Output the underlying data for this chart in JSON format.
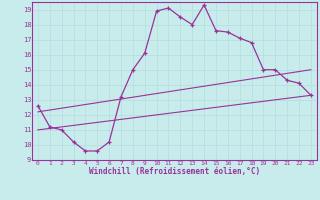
{
  "xlabel": "Windchill (Refroidissement éolien,°C)",
  "ylabel": "",
  "xlim": [
    -0.5,
    23.5
  ],
  "ylim": [
    9,
    19.5
  ],
  "xticks": [
    0,
    1,
    2,
    3,
    4,
    5,
    6,
    7,
    8,
    9,
    10,
    11,
    12,
    13,
    14,
    15,
    16,
    17,
    18,
    19,
    20,
    21,
    22,
    23
  ],
  "yticks": [
    9,
    10,
    11,
    12,
    13,
    14,
    15,
    16,
    17,
    18,
    19
  ],
  "bg_color": "#c8ecec",
  "line_color": "#993399",
  "grid_color": "#b8e0e0",
  "main_x": [
    0,
    1,
    2,
    3,
    4,
    5,
    6,
    7,
    8,
    9,
    10,
    11,
    12,
    13,
    14,
    15,
    16,
    17,
    18,
    19,
    20,
    21,
    22,
    23
  ],
  "main_y": [
    12.6,
    11.2,
    11.0,
    10.2,
    9.6,
    9.6,
    10.2,
    13.2,
    15.0,
    16.1,
    18.9,
    19.1,
    18.5,
    18.0,
    19.3,
    17.6,
    17.5,
    17.1,
    16.8,
    15.0,
    15.0,
    14.3,
    14.1,
    13.3
  ],
  "line2_x": [
    0,
    23
  ],
  "line2_y": [
    11.0,
    13.3
  ],
  "line3_x": [
    0,
    23
  ],
  "line3_y": [
    12.2,
    15.0
  ]
}
